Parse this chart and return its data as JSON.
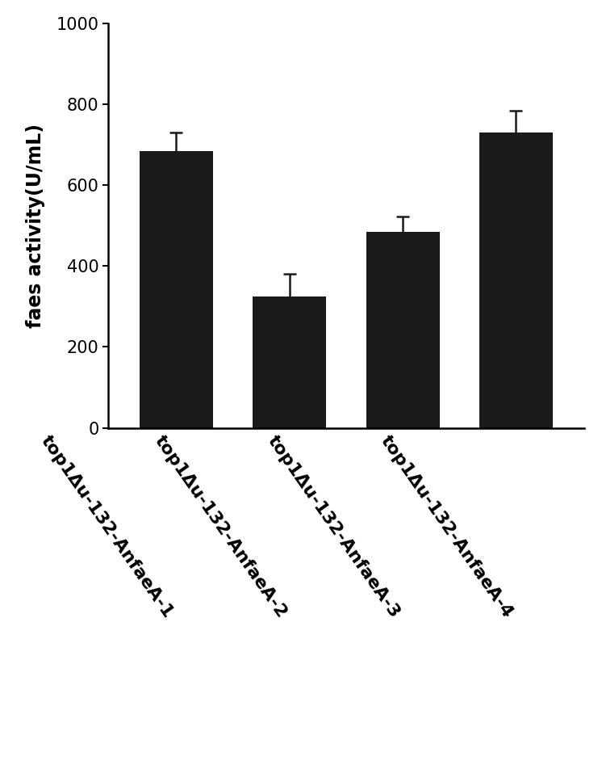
{
  "categories": [
    "top1Δu-132-AnfaeA-1",
    "top1Δu-132-AnfaeA-2",
    "top1Δu-132-AnfaeA-3",
    "top1Δu-132-AnfaeA-4"
  ],
  "values": [
    685,
    325,
    485,
    730
  ],
  "errors": [
    45,
    55,
    38,
    55
  ],
  "bar_color": "#1a1a1a",
  "ylabel": "faes activity(U/mL)",
  "ylim": [
    0,
    1000
  ],
  "yticks": [
    0,
    200,
    400,
    600,
    800,
    1000
  ],
  "bar_width": 0.65,
  "xlabel_rotation": -55,
  "xlabel_fontsize": 16,
  "ylabel_fontsize": 17,
  "tick_fontsize": 15,
  "error_capsize": 6,
  "error_linewidth": 1.8,
  "error_color": "#1a1a1a",
  "background_color": "#ffffff",
  "spine_linewidth": 1.8,
  "figsize": [
    7.46,
    9.63
  ],
  "dpi": 100
}
